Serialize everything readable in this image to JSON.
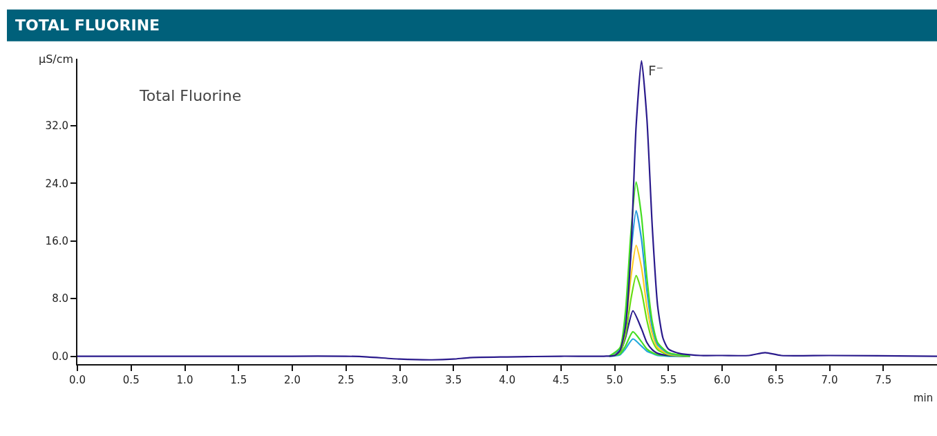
{
  "chart_data": {
    "type": "line",
    "title": "TOTAL FLUORINE",
    "xlabel": "min",
    "ylabel": "µS/cm",
    "annotations": [
      "Total Fluorine",
      {
        "text": "F⁻",
        "x": 5.25,
        "y": 41.0
      }
    ],
    "xlim": [
      0,
      8.0
    ],
    "xticks": [
      {
        "value": 0,
        "label": "0.0"
      },
      {
        "value": 0.5,
        "label": "0.5"
      },
      {
        "value": 1,
        "label": "1.0"
      },
      {
        "value": 1.5,
        "label": "1.5"
      },
      {
        "value": 2,
        "label": "2.0"
      },
      {
        "value": 2.5,
        "label": "2.5"
      },
      {
        "value": 3,
        "label": "3.0"
      },
      {
        "value": 3.5,
        "label": "3.5"
      },
      {
        "value": 4,
        "label": "4.0"
      },
      {
        "value": 4.5,
        "label": "4.5"
      },
      {
        "value": 5,
        "label": "5.0"
      },
      {
        "value": 5.5,
        "label": "5.5"
      },
      {
        "value": 6,
        "label": "6.0"
      },
      {
        "value": 6.5,
        "label": "6.5"
      },
      {
        "value": 7,
        "label": "7.0"
      },
      {
        "value": 7.5,
        "label": "7.5"
      }
    ],
    "ylim": [
      -1.1,
      41.3
    ],
    "yticks": [
      {
        "value": 0,
        "label": "0.0"
      },
      {
        "value": 8,
        "label": "8.0"
      },
      {
        "value": 16,
        "label": "16.0"
      },
      {
        "value": 24,
        "label": "24.0"
      },
      {
        "value": 32,
        "label": "32.0"
      }
    ],
    "marker": "none",
    "line_style": "solid",
    "series": [
      {
        "color": "#22aadd",
        "x": [
          4.95,
          5.05,
          5.1,
          5.17,
          5.25,
          5.3,
          5.35,
          5.4,
          5.5,
          5.7
        ],
        "values": [
          0,
          0.2,
          1.0,
          2.4,
          1.4,
          0.7,
          0.4,
          0.1,
          0,
          0
        ]
      },
      {
        "color": "#44dd22",
        "x": [
          4.95,
          5.05,
          5.1,
          5.17,
          5.25,
          5.3,
          5.35,
          5.4,
          5.5,
          5.7
        ],
        "values": [
          0,
          0.3,
          1.4,
          3.4,
          2.0,
          1.0,
          0.5,
          0.2,
          0.1,
          0
        ]
      },
      {
        "color": "#2a1a8c",
        "x": [
          4.95,
          5.05,
          5.1,
          5.17,
          5.25,
          5.3,
          5.35,
          5.4,
          5.5,
          5.7
        ],
        "values": [
          0,
          0.6,
          2.5,
          6.3,
          3.8,
          1.9,
          0.9,
          0.4,
          0.1,
          0
        ]
      },
      {
        "color": "#66dd11",
        "x": [
          4.95,
          5.05,
          5.1,
          5.15,
          5.2,
          5.25,
          5.3,
          5.35,
          5.4,
          5.5,
          5.7
        ],
        "values": [
          0,
          0.6,
          2.8,
          7.8,
          11.2,
          9.0,
          5.0,
          2.2,
          0.9,
          0.2,
          0
        ]
      },
      {
        "color": "#ffcc22",
        "x": [
          4.95,
          5.05,
          5.1,
          5.15,
          5.2,
          5.25,
          5.3,
          5.35,
          5.4,
          5.5,
          5.7
        ],
        "values": [
          0,
          0.8,
          3.9,
          10.8,
          15.4,
          12.3,
          6.9,
          3.1,
          1.2,
          0.3,
          0
        ]
      },
      {
        "color": "#2299dd",
        "x": [
          4.95,
          5.05,
          5.1,
          5.15,
          5.2,
          5.25,
          5.3,
          5.35,
          5.4,
          5.5,
          5.7
        ],
        "values": [
          0,
          1.0,
          5.1,
          14.1,
          20.2,
          16.2,
          9.1,
          4.0,
          1.6,
          0.4,
          0
        ]
      },
      {
        "color": "#44dd22",
        "x": [
          4.95,
          5.05,
          5.1,
          5.15,
          5.2,
          5.25,
          5.3,
          5.35,
          5.4,
          5.5,
          5.7
        ],
        "values": [
          0,
          1.2,
          6.1,
          16.9,
          24.2,
          19.4,
          10.9,
          4.8,
          1.9,
          0.5,
          0
        ]
      },
      {
        "color": "#2a1a8c",
        "x": [
          0,
          1,
          2,
          2.5,
          2.7,
          3.0,
          3.3,
          3.5,
          3.65,
          4.0,
          4.5,
          4.9,
          5.0,
          5.05,
          5.1,
          5.15,
          5.2,
          5.25,
          5.3,
          5.35,
          5.4,
          5.45,
          5.5,
          5.6,
          5.7,
          5.8,
          6.0,
          6.25,
          6.4,
          6.55,
          7.0,
          8.0
        ],
        "values": [
          0,
          0,
          0,
          0,
          -0.1,
          -0.4,
          -0.5,
          -0.4,
          -0.2,
          -0.1,
          0,
          0,
          0.1,
          0.8,
          4,
          14,
          32,
          41.0,
          33,
          18,
          7,
          2.5,
          1.0,
          0.4,
          0.2,
          0.1,
          0.1,
          0.1,
          0.5,
          0.1,
          0.1,
          0
        ]
      }
    ]
  }
}
